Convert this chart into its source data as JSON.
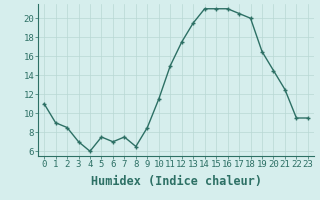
{
  "x": [
    0,
    1,
    2,
    3,
    4,
    5,
    6,
    7,
    8,
    9,
    10,
    11,
    12,
    13,
    14,
    15,
    16,
    17,
    18,
    19,
    20,
    21,
    22,
    23
  ],
  "y": [
    11.0,
    9.0,
    8.5,
    7.0,
    6.0,
    7.5,
    7.0,
    7.5,
    6.5,
    8.5,
    11.5,
    15.0,
    17.5,
    19.5,
    21.0,
    21.0,
    21.0,
    20.5,
    20.0,
    16.5,
    14.5,
    12.5,
    9.5,
    9.5
  ],
  "xlabel": "Humidex (Indice chaleur)",
  "line_color": "#2d7065",
  "marker_color": "#2d7065",
  "bg_color": "#d6eeed",
  "grid_color": "#b8d8d4",
  "xlim": [
    -0.5,
    23.5
  ],
  "ylim": [
    5.5,
    21.5
  ],
  "yticks": [
    6,
    8,
    10,
    12,
    14,
    16,
    18,
    20
  ],
  "xtick_labels": [
    "0",
    "1",
    "2",
    "3",
    "4",
    "5",
    "6",
    "7",
    "8",
    "9",
    "10",
    "11",
    "12",
    "13",
    "14",
    "15",
    "16",
    "17",
    "18",
    "19",
    "20",
    "21",
    "22",
    "23"
  ],
  "tick_fontsize": 6.5,
  "xlabel_fontsize": 8.5
}
